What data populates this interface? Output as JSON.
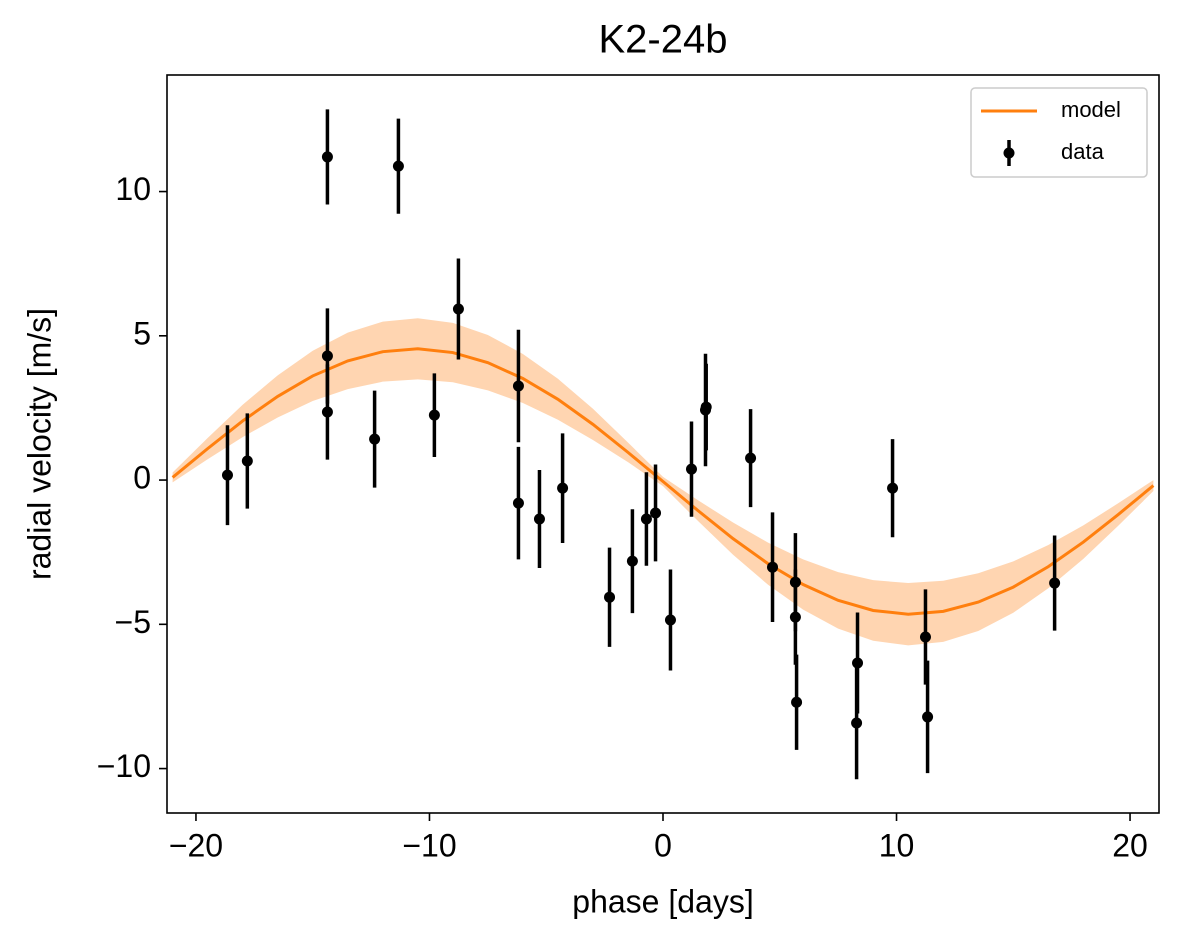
{
  "chart_data": {
    "type": "scatter",
    "title": "K2-24b",
    "x_label": "phase [days]",
    "y_label": "radial velocity [m/s]",
    "xlim": [
      -21.24,
      21.24
    ],
    "ylim": [
      -11.54,
      14.04
    ],
    "xticks": [
      {
        "value": -20,
        "label": "−20"
      },
      {
        "value": -10,
        "label": "−10"
      },
      0,
      10,
      20
    ],
    "yticks": [
      {
        "value": -10,
        "label": "−10"
      },
      {
        "value": -5,
        "label": "−5"
      },
      0,
      5,
      10
    ],
    "grid": false,
    "legend": "upper right",
    "series": [
      {
        "name": "model",
        "type": "line",
        "color": "#ff7f0e",
        "band_color": "#ffd5b1",
        "x": [
          -21,
          -19.5,
          -18,
          -16.5,
          -15,
          -13.5,
          -12,
          -10.5,
          -9,
          -7.5,
          -6,
          -4.5,
          -3,
          -1.5,
          0,
          1.5,
          3,
          4.5,
          6,
          7.5,
          9,
          10.5,
          12,
          13.5,
          15,
          16.5,
          18,
          19.5,
          21
        ],
        "values": [
          0.09,
          1.09,
          2.05,
          2.9,
          3.61,
          4.13,
          4.45,
          4.55,
          4.42,
          4.07,
          3.52,
          2.8,
          1.93,
          0.96,
          -0.05,
          -1.06,
          -2.03,
          -2.9,
          -3.62,
          -4.17,
          -4.52,
          -4.65,
          -4.55,
          -4.23,
          -3.71,
          -3.0,
          -2.15,
          -1.19,
          -0.19
        ],
        "lower": [
          -0.08,
          0.72,
          1.49,
          2.17,
          2.74,
          3.15,
          3.41,
          3.49,
          3.39,
          3.11,
          2.67,
          2.09,
          1.39,
          0.62,
          -0.21,
          -1.42,
          -2.59,
          -3.63,
          -4.49,
          -5.15,
          -5.57,
          -5.73,
          -5.61,
          -5.23,
          -4.6,
          -3.75,
          -2.73,
          -1.58,
          -0.38
        ],
        "upper": [
          0.26,
          1.46,
          2.61,
          3.63,
          4.48,
          5.11,
          5.49,
          5.61,
          5.45,
          5.03,
          4.37,
          3.51,
          2.47,
          1.3,
          0.11,
          -0.7,
          -1.47,
          -2.17,
          -2.75,
          -3.19,
          -3.47,
          -3.57,
          -3.49,
          -3.23,
          -2.82,
          -2.25,
          -1.57,
          -0.8,
          0.0
        ]
      },
      {
        "name": "data",
        "type": "errorbar",
        "color": "#000000",
        "x": [
          -18.65,
          -17.8,
          -14.37,
          -14.37,
          -14.37,
          -12.35,
          -11.33,
          -9.79,
          -8.76,
          -6.19,
          -6.19,
          -5.29,
          -4.3,
          -2.29,
          -1.31,
          -0.71,
          -0.32,
          0.32,
          1.22,
          1.82,
          1.85,
          3.75,
          4.69,
          5.67,
          5.67,
          5.72,
          8.29,
          8.33,
          9.83,
          11.24,
          11.33,
          16.77
        ],
        "values": [
          0.17,
          0.66,
          11.2,
          4.3,
          2.36,
          1.42,
          10.88,
          2.25,
          5.93,
          3.26,
          -0.8,
          -1.35,
          -0.28,
          -4.06,
          -2.81,
          -1.35,
          -1.14,
          -4.85,
          0.38,
          2.43,
          2.53,
          0.76,
          -3.02,
          -3.54,
          -4.75,
          -7.7,
          -8.42,
          -6.34,
          -0.28,
          -5.44,
          -8.21,
          -3.57
        ],
        "errors": [
          1.73,
          1.65,
          1.65,
          1.65,
          1.65,
          1.68,
          1.65,
          1.45,
          1.75,
          1.95,
          1.95,
          1.7,
          1.9,
          1.72,
          1.8,
          1.62,
          1.68,
          1.75,
          1.65,
          1.95,
          1.5,
          1.7,
          1.9,
          1.7,
          1.65,
          1.65,
          1.95,
          1.75,
          1.7,
          1.65,
          1.95,
          1.65
        ]
      }
    ]
  }
}
